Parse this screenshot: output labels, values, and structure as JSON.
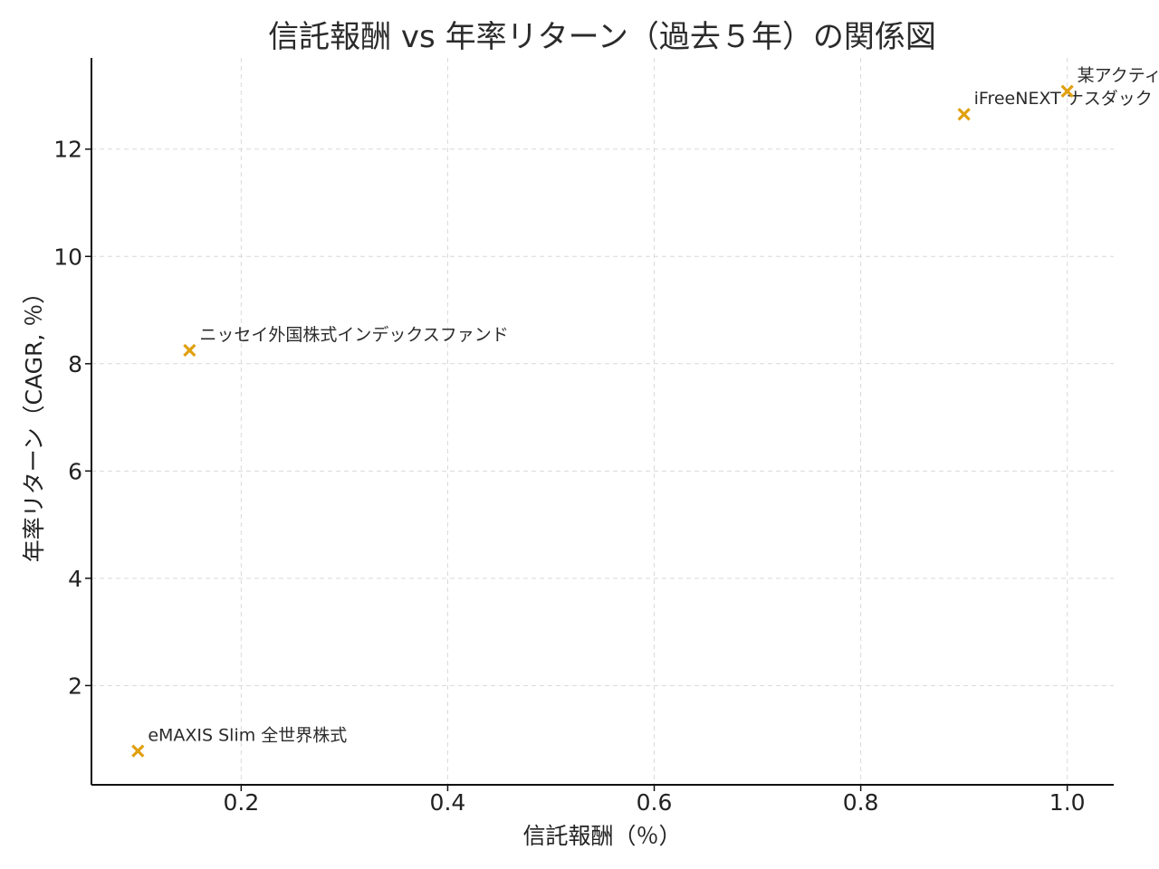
{
  "chart_data": {
    "type": "scatter",
    "title": "信託報酬 vs 年率リターン（過去５年）の関係図",
    "xlabel": "信託報酬（％）",
    "ylabel": "年率リターン（CAGR, ％）",
    "xlim": [
      0.055,
      1.045
    ],
    "ylim": [
      0.15,
      13.7
    ],
    "xticks": [
      0.2,
      0.4,
      0.6,
      0.8,
      1.0
    ],
    "xtick_labels": [
      "0.2",
      "0.4",
      "0.6",
      "0.8",
      "1.0"
    ],
    "yticks": [
      2,
      4,
      6,
      8,
      10,
      12
    ],
    "ytick_labels": [
      "2",
      "4",
      "6",
      "8",
      "10",
      "12"
    ],
    "grid": true,
    "marker": "x",
    "color": "#e0a00f",
    "points": [
      {
        "x": 0.1,
        "y": 0.78,
        "label": "eMAXIS Slim 全世界株式"
      },
      {
        "x": 0.15,
        "y": 8.25,
        "label": "ニッセイ外国株式インデックスファンド"
      },
      {
        "x": 0.9,
        "y": 12.65,
        "label": "iFreeNEXT ナスダック"
      },
      {
        "x": 1.0,
        "y": 13.08,
        "label": "某アクティブ"
      }
    ]
  }
}
